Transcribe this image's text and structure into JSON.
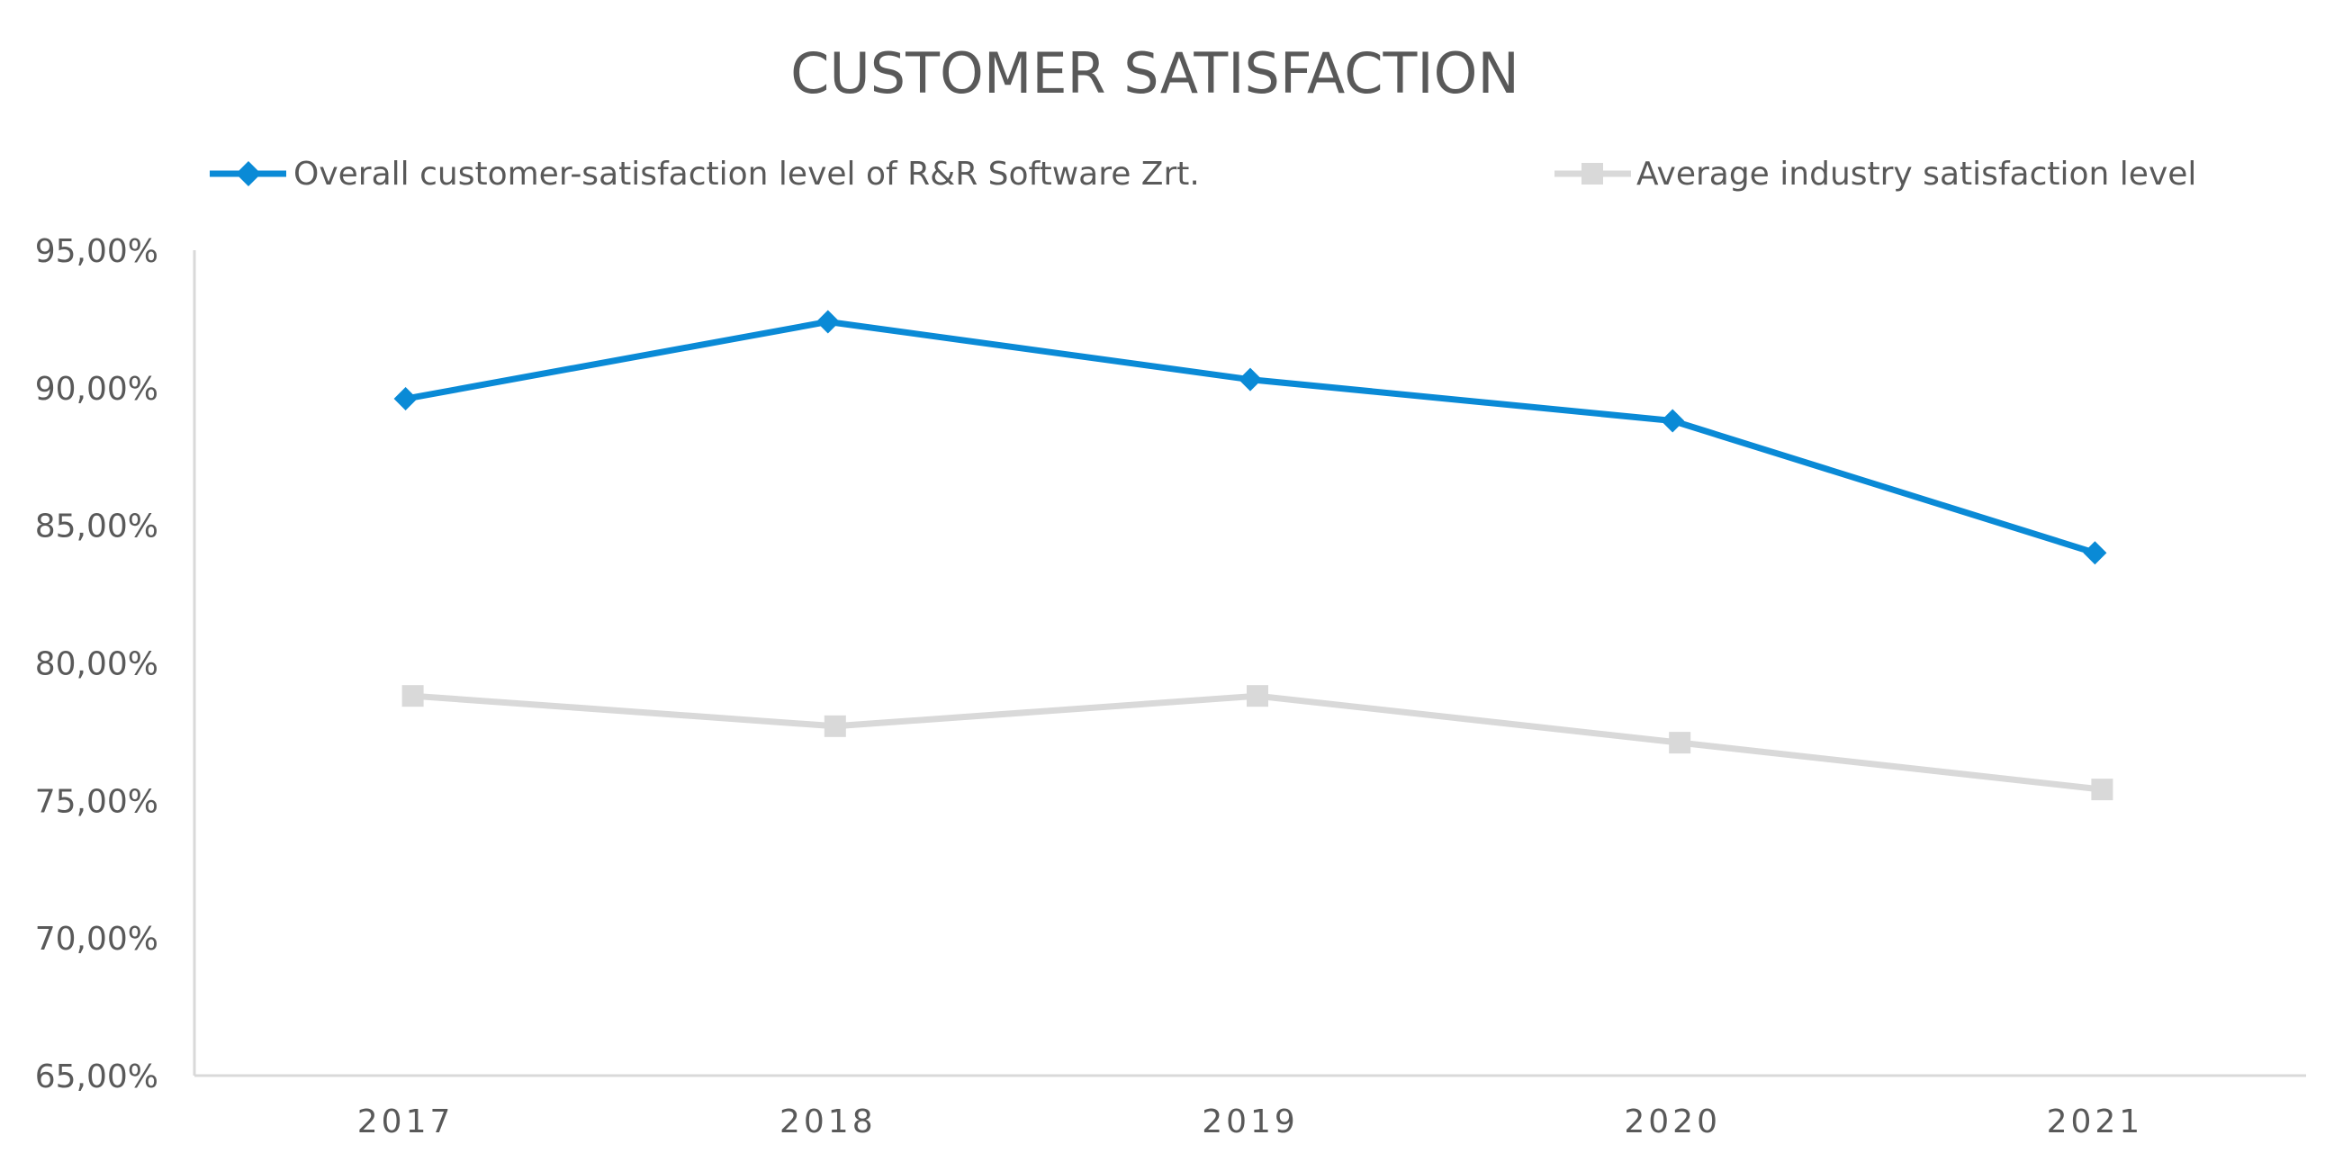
{
  "chart_data": {
    "type": "line",
    "title": "CUSTOMER SATISFACTION",
    "xlabel": "",
    "ylabel": "",
    "categories": [
      "2017",
      "2018",
      "2019",
      "2020",
      "2021"
    ],
    "ylim": [
      65,
      95
    ],
    "yticks": [
      65,
      70,
      75,
      80,
      85,
      90,
      95
    ],
    "ytick_labels": [
      "65,00%",
      "70,00%",
      "75,00%",
      "80,00%",
      "85,00%",
      "90,00%",
      "95,00%"
    ],
    "grid": false,
    "legend_position": "top",
    "series": [
      {
        "name": "Overall customer-satisfaction level of R&R Software Zrt.",
        "values": [
          89.6,
          92.4,
          90.3,
          88.8,
          84.0
        ],
        "color": "#0a8ad6",
        "marker": "diamond"
      },
      {
        "name": "Average industry satisfaction level",
        "values": [
          78.8,
          77.7,
          78.8,
          77.1,
          75.4
        ],
        "color": "#d9d9d9",
        "marker": "square"
      }
    ]
  }
}
